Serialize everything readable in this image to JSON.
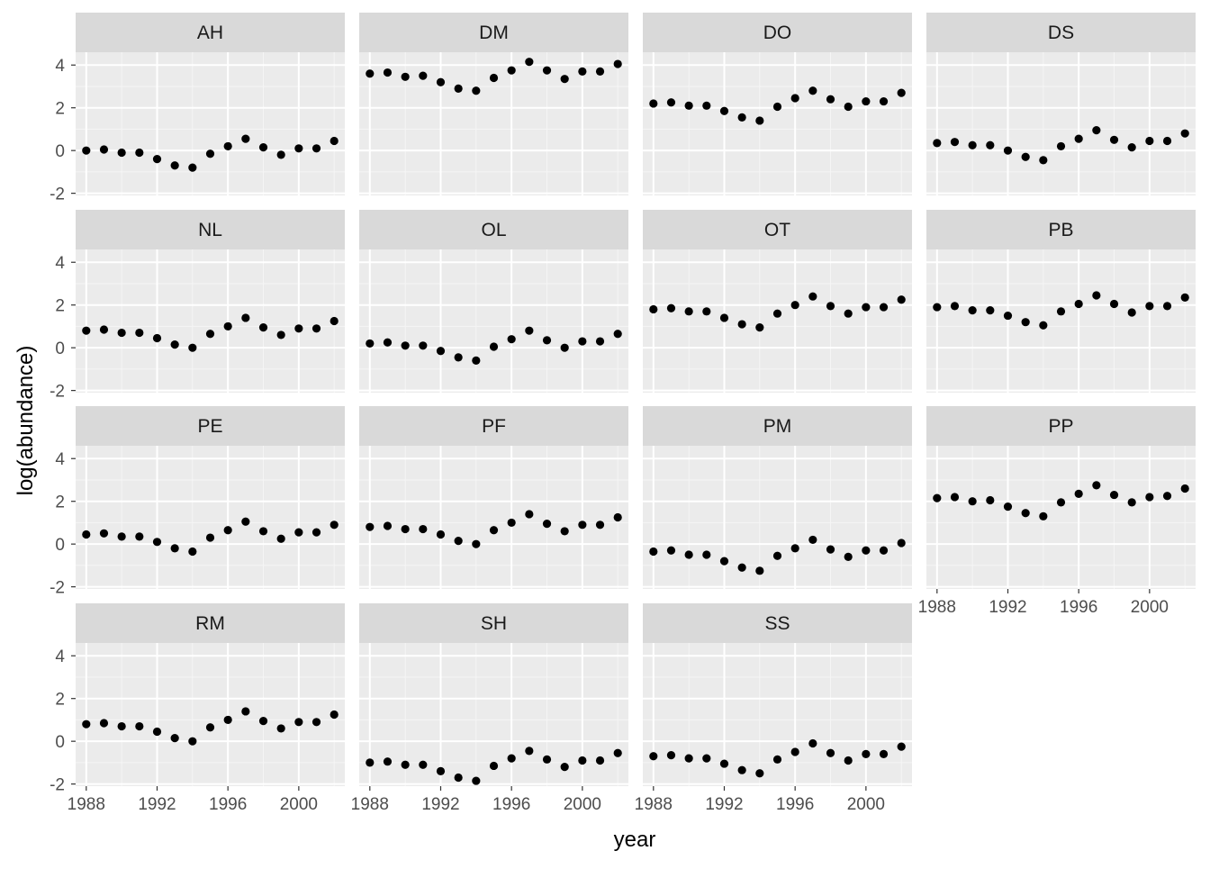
{
  "chart_data": {
    "type": "scatter",
    "layout": "facet_wrap",
    "xlabel": "year",
    "ylabel": "log(abundance)",
    "x_ticks": [
      1988,
      1992,
      1996,
      2000
    ],
    "y_ticks": [
      -2,
      0,
      2,
      4
    ],
    "xlim": [
      1987.4,
      2002.6
    ],
    "ylim": [
      -2.1,
      4.6
    ],
    "grid": true,
    "x": [
      1988,
      1989,
      1990,
      1991,
      1992,
      1993,
      1994,
      1995,
      1996,
      1997,
      1998,
      1999,
      2000,
      2001,
      2002
    ],
    "panels": [
      {
        "label": "AH",
        "values": [
          0.0,
          0.05,
          -0.1,
          -0.1,
          -0.4,
          -0.7,
          -0.8,
          -0.15,
          0.2,
          0.55,
          0.15,
          -0.2,
          0.1,
          0.1,
          0.45
        ]
      },
      {
        "label": "DM",
        "values": [
          3.6,
          3.65,
          3.45,
          3.5,
          3.2,
          2.9,
          2.8,
          3.4,
          3.75,
          4.15,
          3.75,
          3.35,
          3.7,
          3.7,
          4.05
        ]
      },
      {
        "label": "DO",
        "values": [
          2.2,
          2.25,
          2.1,
          2.1,
          1.85,
          1.55,
          1.4,
          2.05,
          2.45,
          2.8,
          2.4,
          2.05,
          2.3,
          2.3,
          2.7
        ]
      },
      {
        "label": "DS",
        "values": [
          0.35,
          0.4,
          0.25,
          0.25,
          0.0,
          -0.3,
          -0.45,
          0.2,
          0.55,
          0.95,
          0.5,
          0.15,
          0.45,
          0.45,
          0.8
        ]
      },
      {
        "label": "NL",
        "values": [
          0.8,
          0.85,
          0.7,
          0.7,
          0.45,
          0.15,
          0.0,
          0.65,
          1.0,
          1.4,
          0.95,
          0.6,
          0.9,
          0.9,
          1.25
        ]
      },
      {
        "label": "OL",
        "values": [
          0.2,
          0.25,
          0.1,
          0.1,
          -0.15,
          -0.45,
          -0.6,
          0.05,
          0.4,
          0.8,
          0.35,
          0.0,
          0.3,
          0.3,
          0.65
        ]
      },
      {
        "label": "OT",
        "values": [
          1.8,
          1.85,
          1.7,
          1.7,
          1.4,
          1.1,
          0.95,
          1.6,
          2.0,
          2.4,
          1.95,
          1.6,
          1.9,
          1.9,
          2.25
        ]
      },
      {
        "label": "PB",
        "values": [
          1.9,
          1.95,
          1.75,
          1.75,
          1.5,
          1.2,
          1.05,
          1.7,
          2.05,
          2.45,
          2.05,
          1.65,
          1.95,
          1.95,
          2.35
        ]
      },
      {
        "label": "PE",
        "values": [
          0.45,
          0.5,
          0.35,
          0.35,
          0.1,
          -0.2,
          -0.35,
          0.3,
          0.65,
          1.05,
          0.6,
          0.25,
          0.55,
          0.55,
          0.9
        ]
      },
      {
        "label": "PF",
        "values": [
          0.8,
          0.85,
          0.7,
          0.7,
          0.45,
          0.15,
          0.0,
          0.65,
          1.0,
          1.4,
          0.95,
          0.6,
          0.9,
          0.9,
          1.25
        ]
      },
      {
        "label": "PM",
        "values": [
          -0.35,
          -0.3,
          -0.5,
          -0.5,
          -0.8,
          -1.1,
          -1.25,
          -0.55,
          -0.2,
          0.2,
          -0.25,
          -0.6,
          -0.3,
          -0.3,
          0.05
        ]
      },
      {
        "label": "PP",
        "values": [
          2.15,
          2.2,
          2.0,
          2.05,
          1.75,
          1.45,
          1.3,
          1.95,
          2.35,
          2.75,
          2.3,
          1.95,
          2.2,
          2.25,
          2.6
        ]
      },
      {
        "label": "RM",
        "values": [
          0.8,
          0.85,
          0.7,
          0.7,
          0.45,
          0.15,
          0.0,
          0.65,
          1.0,
          1.4,
          0.95,
          0.6,
          0.9,
          0.9,
          1.25
        ]
      },
      {
        "label": "SH",
        "values": [
          -1.0,
          -0.95,
          -1.1,
          -1.1,
          -1.4,
          -1.7,
          -1.85,
          -1.15,
          -0.8,
          -0.45,
          -0.85,
          -1.2,
          -0.9,
          -0.9,
          -0.55
        ]
      },
      {
        "label": "SS",
        "values": [
          -0.7,
          -0.65,
          -0.8,
          -0.8,
          -1.05,
          -1.35,
          -1.5,
          -0.85,
          -0.5,
          -0.1,
          -0.55,
          -0.9,
          -0.6,
          -0.6,
          -0.25
        ]
      }
    ],
    "colors": {
      "panel_background": "#ebebeb",
      "strip_background": "#d9d9d9",
      "grid_major": "#ffffff",
      "grid_minor": "#f5f5f5",
      "point": "#000000",
      "tick": "#333333"
    }
  }
}
